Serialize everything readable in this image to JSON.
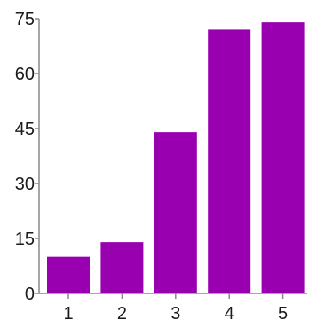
{
  "chart_data": {
    "type": "bar",
    "categories": [
      "1",
      "2",
      "3",
      "4",
      "5"
    ],
    "values": [
      10,
      14,
      44,
      72,
      74
    ],
    "title": "",
    "xlabel": "",
    "ylabel": "",
    "ylim": [
      0,
      75
    ],
    "yticks": [
      "0",
      "15",
      "30",
      "45",
      "60",
      "75"
    ],
    "grid": false,
    "legend": "none",
    "bar_color": "#9900b0",
    "axis_color": "#888888"
  }
}
